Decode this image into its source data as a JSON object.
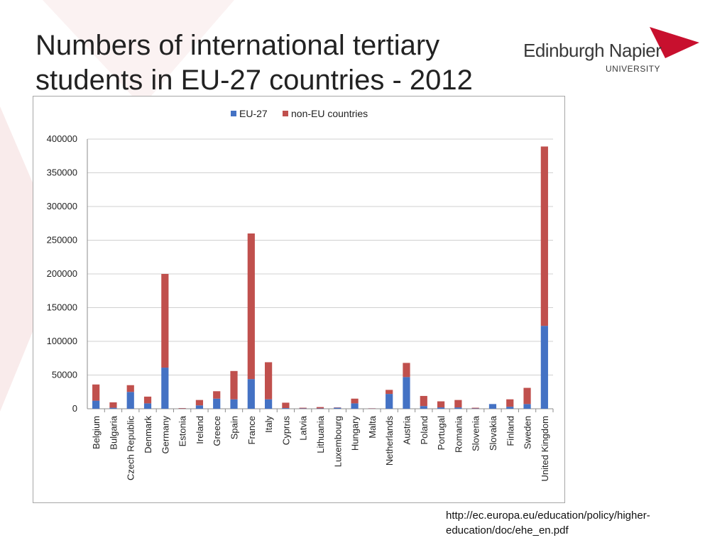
{
  "slide": {
    "title_line1": "Numbers of international tertiary",
    "title_line2": "students in EU-27 countries - 2012",
    "source_line1": "http://ec.europa.eu/education/policy/higher-",
    "source_line2": "education/doc/ehe_en.pdf"
  },
  "logo": {
    "name": "Edinburgh Napier",
    "sub": "UNIVERSITY",
    "accent_color": "#c8102e"
  },
  "chart_data": {
    "type": "bar",
    "stacked": true,
    "title": "",
    "xlabel": "",
    "ylabel": "",
    "ylim": [
      0,
      400000
    ],
    "yticks": [
      0,
      50000,
      100000,
      150000,
      200000,
      250000,
      300000,
      350000,
      400000
    ],
    "grid": true,
    "legend_position": "top",
    "categories": [
      "Belgium",
      "Bulgaria",
      "Czech Republic",
      "Denmark",
      "Germany",
      "Estonia",
      "Ireland",
      "Greece",
      "Spain",
      "France",
      "Italy",
      "Cyprus",
      "Latvia",
      "Lithuania",
      "Luxembourg",
      "Hungary",
      "Malta",
      "Netherlands",
      "Austria",
      "Poland",
      "Portugal",
      "Romania",
      "Slovenia",
      "Slovakia",
      "Finland",
      "Sweden",
      "United Kingdom"
    ],
    "series": [
      {
        "name": "EU-27",
        "color": "#4472c4",
        "values": [
          12000,
          1500,
          25000,
          8000,
          61000,
          300,
          5000,
          15000,
          14000,
          44000,
          14000,
          1000,
          500,
          500,
          1500,
          8000,
          300,
          22000,
          47000,
          4000,
          2000,
          2000,
          500,
          7000,
          3000,
          7000,
          123000
        ]
      },
      {
        "name": "non-EU countries",
        "color": "#c0504d",
        "values": [
          24000,
          8000,
          10000,
          10000,
          139000,
          700,
          8000,
          11000,
          42000,
          216000,
          55000,
          8000,
          1000,
          2000,
          500,
          7000,
          400,
          6000,
          21000,
          15000,
          9000,
          11000,
          1000,
          0,
          11000,
          24000,
          266000
        ]
      }
    ]
  }
}
